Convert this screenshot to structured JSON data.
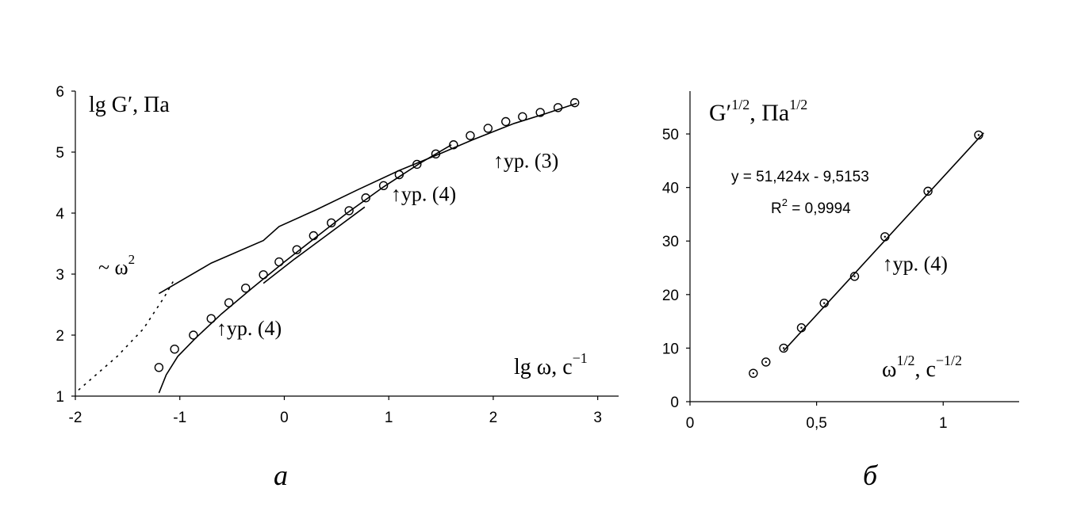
{
  "chart_data": [
    {
      "type": "scatter",
      "panel_label": "а",
      "xlim": [
        -2,
        3.2
      ],
      "ylim": [
        1,
        6
      ],
      "x_ticks": [
        "-2",
        "-1",
        "0",
        "1",
        "2",
        "3"
      ],
      "y_ticks": [
        "1",
        "2",
        "3",
        "4",
        "5",
        "6"
      ],
      "ylabel": "lg G′, Па",
      "xlabel": "lg ω, с",
      "xlabel_sup": "−1",
      "grid": false,
      "series": [
        {
          "style": "markers",
          "points": [
            [
              -1.2,
              1.47
            ],
            [
              -1.05,
              1.77
            ],
            [
              -0.87,
              2.0
            ],
            [
              -0.7,
              2.27
            ],
            [
              -0.53,
              2.53
            ],
            [
              -0.37,
              2.77
            ],
            [
              -0.2,
              2.99
            ],
            [
              -0.05,
              3.2
            ],
            [
              0.12,
              3.4
            ],
            [
              0.28,
              3.63
            ],
            [
              0.45,
              3.84
            ],
            [
              0.62,
              4.04
            ],
            [
              0.78,
              4.25
            ],
            [
              0.95,
              4.45
            ],
            [
              1.1,
              4.63
            ],
            [
              1.27,
              4.8
            ],
            [
              1.45,
              4.97
            ],
            [
              1.62,
              5.12
            ],
            [
              1.78,
              5.27
            ],
            [
              1.95,
              5.39
            ],
            [
              2.12,
              5.5
            ],
            [
              2.28,
              5.58
            ],
            [
              2.45,
              5.65
            ],
            [
              2.62,
              5.73
            ],
            [
              2.78,
              5.81
            ]
          ]
        },
        {
          "style": "line",
          "points": [
            [
              -1.2,
              1.05
            ],
            [
              -1.13,
              1.35
            ],
            [
              -1.02,
              1.65
            ],
            [
              -0.85,
              1.95
            ],
            [
              -0.6,
              2.35
            ],
            [
              -0.3,
              2.78
            ],
            [
              0.0,
              3.2
            ],
            [
              0.3,
              3.6
            ],
            [
              0.6,
              4.0
            ],
            [
              0.95,
              4.43
            ],
            [
              1.3,
              4.82
            ],
            [
              1.6,
              5.12
            ]
          ]
        },
        {
          "style": "line",
          "points": [
            [
              -0.2,
              2.85
            ],
            [
              0.1,
              3.25
            ],
            [
              0.4,
              3.63
            ],
            [
              0.77,
              4.1
            ]
          ]
        },
        {
          "style": "line",
          "points": [
            [
              -1.2,
              2.68
            ],
            [
              -0.7,
              3.18
            ],
            [
              -0.2,
              3.55
            ],
            [
              -0.05,
              3.78
            ],
            [
              0.3,
              4.05
            ],
            [
              0.7,
              4.38
            ],
            [
              1.1,
              4.7
            ],
            [
              1.5,
              4.98
            ],
            [
              1.8,
              5.2
            ],
            [
              2.2,
              5.47
            ],
            [
              2.5,
              5.63
            ],
            [
              2.8,
              5.8
            ]
          ]
        },
        {
          "style": "dotted",
          "points": [
            [
              -1.97,
              1.1
            ],
            [
              -1.6,
              1.65
            ],
            [
              -1.35,
              2.1
            ],
            [
              -1.15,
              2.62
            ],
            [
              -1.05,
              2.92
            ]
          ]
        }
      ],
      "annotations": [
        {
          "text": "~ ω",
          "sup": "2",
          "x": -1.78,
          "y": 3.0
        },
        {
          "text": "↑ур. (4)",
          "x": -0.65,
          "y": 2.0
        },
        {
          "text": "↑ур. (4)",
          "x": 1.02,
          "y": 4.2
        },
        {
          "text": "↑ур. (3)",
          "x": 2.0,
          "y": 4.75
        }
      ]
    },
    {
      "type": "scatter",
      "panel_label": "б",
      "xlim": [
        0,
        1.3
      ],
      "ylim": [
        0,
        58
      ],
      "x_ticks": [
        "0",
        "0,5",
        "1"
      ],
      "y_ticks": [
        "0",
        "10",
        "20",
        "30",
        "40",
        "50"
      ],
      "ylabel": "G′",
      "ylabel_sup": "1/2",
      "ylabel_mid": ", Па",
      "ylabel_sup2": "1/2",
      "xlabel": "ω",
      "xlabel_sup": "1/2",
      "xlabel_mid": ", с",
      "xlabel_sup2": "−1/2",
      "grid": false,
      "series": [
        {
          "style": "markers",
          "points": [
            [
              0.25,
              5.3
            ],
            [
              0.3,
              7.4
            ],
            [
              0.37,
              10.0
            ],
            [
              0.44,
              13.8
            ],
            [
              0.53,
              18.4
            ],
            [
              0.65,
              23.4
            ],
            [
              0.77,
              30.8
            ],
            [
              0.94,
              39.3
            ],
            [
              1.14,
              49.8
            ]
          ]
        },
        {
          "style": "line",
          "points": [
            [
              0.37,
              9.5
            ],
            [
              1.16,
              50.2
            ]
          ]
        }
      ],
      "equation": "y = 51,424x - 9,5153",
      "r2_label": "R",
      "r2_sup": "2",
      "r2_value": " = 0,9994",
      "annotations": [
        {
          "text": "↑ур. (4)",
          "x": 0.76,
          "y": 24.5
        }
      ]
    }
  ]
}
